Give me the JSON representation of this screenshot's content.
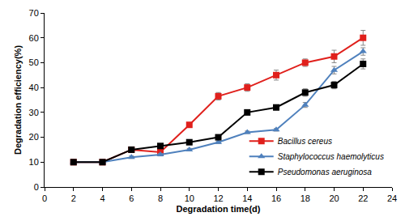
{
  "chart_data": {
    "type": "line",
    "x_label": "Degradation time(d)",
    "y_label": "Degradation efficiency(%)",
    "x": [
      2,
      4,
      6,
      8,
      10,
      12,
      14,
      16,
      18,
      20,
      22
    ],
    "series": [
      {
        "name": "Bacillus cereus",
        "color": "#e0201c",
        "marker": "square",
        "values": [
          10,
          10,
          15,
          14,
          25,
          36.5,
          40,
          45,
          50,
          52.5,
          60
        ],
        "error": [
          0,
          0,
          0.5,
          1,
          0.5,
          1.5,
          1.5,
          2,
          1.5,
          2.5,
          3
        ]
      },
      {
        "name": "Staphylococcus haemolyticus",
        "color": "#4f81bd",
        "marker": "triangle",
        "values": [
          10,
          10,
          12,
          13,
          15,
          18,
          22,
          23,
          33,
          47,
          54.5
        ],
        "error": [
          0,
          0,
          0.5,
          0.5,
          0.5,
          0.5,
          0.5,
          0.5,
          1,
          1.5,
          1.5
        ]
      },
      {
        "name": "Pseudomonas aeruginosa",
        "color": "#000000",
        "marker": "square",
        "values": [
          10,
          10,
          15,
          16.5,
          18,
          20,
          30,
          32,
          38,
          41,
          49.5
        ],
        "error": [
          0,
          0,
          0.5,
          0.5,
          0.5,
          1,
          1,
          1,
          1.5,
          1.5,
          2
        ]
      }
    ],
    "xlim": [
      0,
      24
    ],
    "xticks": [
      0,
      2,
      4,
      6,
      8,
      10,
      12,
      14,
      16,
      18,
      20,
      22,
      24
    ],
    "ylim": [
      0,
      70
    ],
    "yticks": [
      0,
      10,
      20,
      30,
      40,
      50,
      60,
      70
    ],
    "grid": false,
    "legend": "lower right"
  }
}
